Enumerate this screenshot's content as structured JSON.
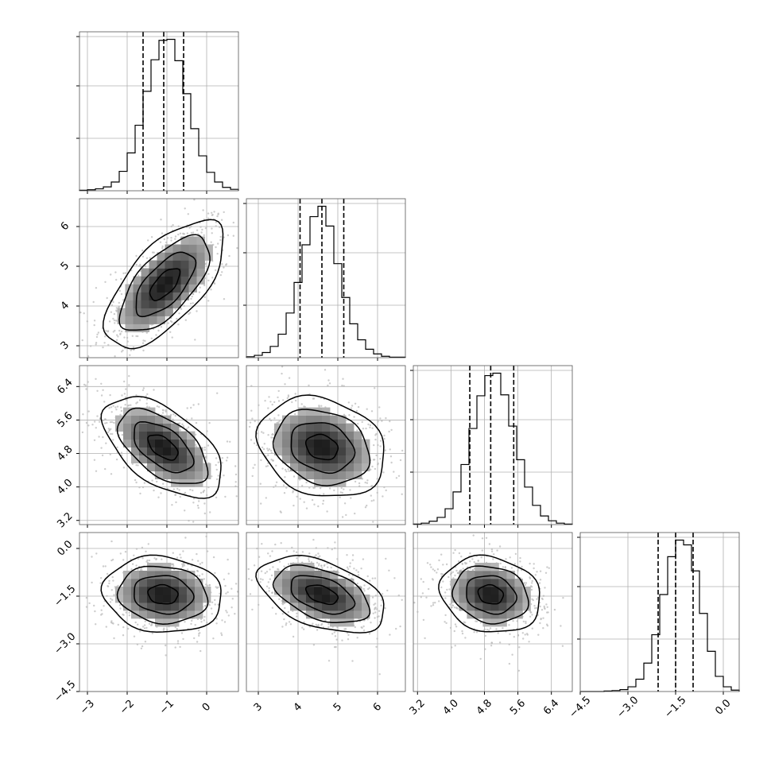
{
  "chart_data": {
    "type": "corner",
    "parameters": 4,
    "grid": true,
    "x_ranges": [
      [
        -3.2,
        0.8
      ],
      [
        2.7,
        6.7
      ],
      [
        3.1,
        6.9
      ],
      [
        -4.5,
        0.5
      ]
    ],
    "y_ranges_2d": [
      null,
      [
        2.7,
        6.7
      ],
      [
        3.1,
        6.9
      ],
      [
        -4.5,
        0.5
      ]
    ],
    "x_ticks": [
      {
        "values": [
          -3,
          -2,
          -1,
          0
        ],
        "labels": [
          "−3",
          "−2",
          "−1",
          "0"
        ]
      },
      {
        "values": [
          3,
          4,
          5,
          6
        ],
        "labels": [
          "3",
          "4",
          "5",
          "6"
        ]
      },
      {
        "values": [
          3.2,
          4.0,
          4.8,
          5.6,
          6.4
        ],
        "labels": [
          "3.2",
          "4.0",
          "4.8",
          "5.6",
          "6.4"
        ]
      },
      {
        "values": [
          -4.5,
          -3.0,
          -1.5,
          0.0
        ],
        "labels": [
          "−4.5",
          "−3.0",
          "−1.5",
          "0.0"
        ]
      }
    ],
    "y_ticks": [
      null,
      {
        "values": [
          3,
          4,
          5,
          6
        ],
        "labels": [
          "3",
          "4",
          "5",
          "6"
        ]
      },
      {
        "values": [
          3.2,
          4.0,
          4.8,
          5.6,
          6.4
        ],
        "labels": [
          "3.2",
          "4.0",
          "4.8",
          "5.6",
          "6.4"
        ]
      },
      {
        "values": [
          -4.5,
          -3.0,
          -1.5,
          0.0
        ],
        "labels": [
          "−4.5",
          "−3.0",
          "−1.5",
          "0.0"
        ]
      }
    ],
    "histograms": [
      {
        "bins": [
          -3.2,
          0.8
        ],
        "counts": [
          1,
          2,
          4,
          8,
          18,
          40,
          78,
          135,
          205,
          270,
          310,
          312,
          268,
          200,
          128,
          72,
          38,
          18,
          7,
          3
        ],
        "quantiles": [
          -1.6,
          -1.08,
          -0.58
        ]
      },
      {
        "bins": [
          2.7,
          6.7
        ],
        "counts": [
          2,
          5,
          11,
          24,
          50,
          95,
          160,
          240,
          300,
          322,
          280,
          200,
          128,
          72,
          38,
          18,
          8,
          3,
          1,
          1
        ],
        "quantiles": [
          4.05,
          4.6,
          5.15
        ]
      },
      {
        "bins": [
          3.1,
          6.9
        ],
        "counts": [
          1,
          3,
          7,
          15,
          33,
          68,
          125,
          200,
          268,
          310,
          315,
          270,
          205,
          135,
          78,
          40,
          18,
          8,
          3,
          1
        ],
        "quantiles": [
          4.45,
          4.95,
          5.5
        ]
      },
      {
        "bins": [
          -4.5,
          0.5
        ],
        "counts": [
          0,
          0,
          0,
          1,
          2,
          4,
          10,
          26,
          60,
          120,
          205,
          285,
          320,
          310,
          255,
          165,
          85,
          32,
          10,
          3
        ],
        "quantiles": [
          -2.05,
          -1.5,
          -0.95
        ]
      }
    ],
    "pairs": [
      {
        "x_param": 0,
        "y_param": 1,
        "center": [
          -1.05,
          4.55
        ],
        "sd": [
          0.75,
          0.8
        ],
        "corr": 0.65
      },
      {
        "x_param": 0,
        "y_param": 2,
        "center": [
          -1.1,
          4.95
        ],
        "sd": [
          0.75,
          0.6
        ],
        "corr": -0.55
      },
      {
        "x_param": 1,
        "y_param": 2,
        "center": [
          4.6,
          4.95
        ],
        "sd": [
          0.8,
          0.6
        ],
        "corr": -0.2
      },
      {
        "x_param": 0,
        "y_param": 3,
        "center": [
          -1.1,
          -1.45
        ],
        "sd": [
          0.75,
          0.6
        ],
        "corr": -0.1
      },
      {
        "x_param": 1,
        "y_param": 3,
        "center": [
          4.6,
          -1.45
        ],
        "sd": [
          0.8,
          0.6
        ],
        "corr": -0.45
      },
      {
        "x_param": 2,
        "y_param": 3,
        "center": [
          4.95,
          -1.45
        ],
        "sd": [
          0.6,
          0.6
        ],
        "corr": -0.15
      }
    ],
    "contour_levels_sigma": [
      0.5,
      1.0,
      1.5,
      2.0
    ]
  }
}
